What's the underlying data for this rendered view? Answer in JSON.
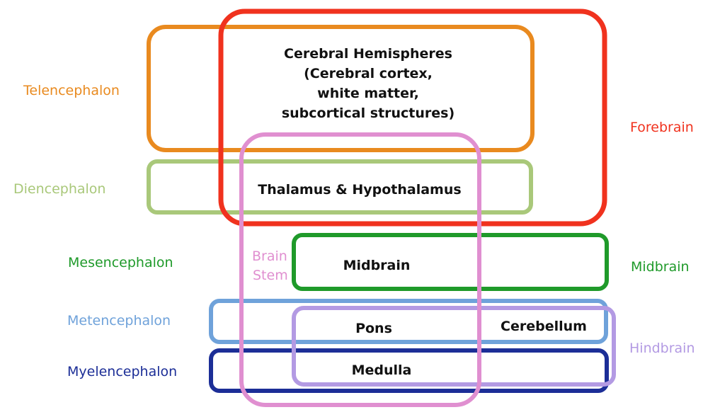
{
  "colors": {
    "telencephalon": "#E98A1F",
    "forebrain": "#F0321E",
    "diencephalon": "#A9C87A",
    "brainstem": "#E08FD0",
    "midbrain": "#1F9A2A",
    "metencephalon": "#6FA2DA",
    "myelencephalon": "#1C2E97",
    "hindbrain": "#B39AE3"
  },
  "left_labels": {
    "telencephalon": "Telencephalon",
    "diencephalon": "Diencephalon",
    "mesencephalon": "Mesencephalon",
    "metencephalon": "Metencephalon",
    "myelencephalon": "Myelencephalon"
  },
  "right_labels": {
    "forebrain": "Forebrain",
    "midbrain": "Midbrain",
    "hindbrain": "Hindbrain"
  },
  "brainstem_label": {
    "line1": "Brain",
    "line2": "Stem"
  },
  "regions": {
    "cerebral_line1": "Cerebral Hemispheres",
    "cerebral_line2": "(Cerebral cortex,",
    "cerebral_line3": "white matter,",
    "cerebral_line4": "subcortical structures)",
    "thalamus": "Thalamus & Hypothalamus",
    "midbrain": "Midbrain",
    "pons": "Pons",
    "cerebellum": "Cerebellum",
    "medulla": "Medulla"
  }
}
